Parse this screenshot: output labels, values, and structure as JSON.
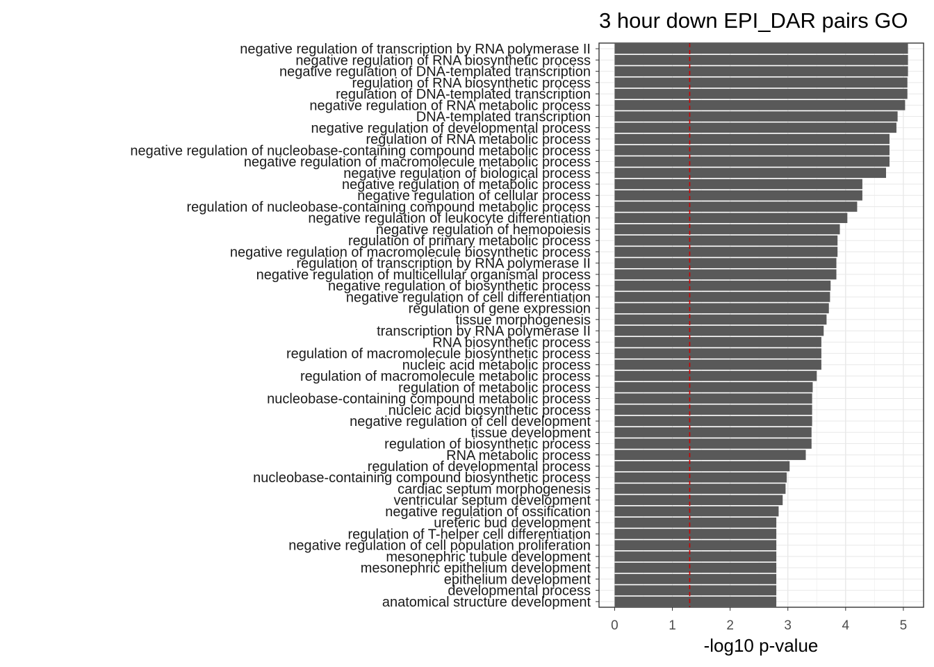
{
  "chart_data": {
    "type": "bar",
    "orientation": "horizontal",
    "title": "3 hour down EPI_DAR pairs GO",
    "xlabel": "-log10 p-value",
    "ylabel": "",
    "xlim": [
      -0.27,
      5.35
    ],
    "xticks": [
      0,
      1,
      2,
      3,
      4,
      5
    ],
    "threshold": 1.3,
    "bar_color": "#595959",
    "threshold_color": "#cc0000",
    "grid": true,
    "categories": [
      "negative regulation of transcription by RNA polymerase II",
      "negative regulation of RNA biosynthetic process",
      "negative regulation of DNA-templated transcription",
      "regulation of RNA biosynthetic process",
      "regulation of DNA-templated transcription",
      "negative regulation of RNA metabolic process",
      "DNA-templated transcription",
      "negative regulation of developmental process",
      "regulation of RNA metabolic process",
      "negative regulation of nucleobase-containing compound metabolic process",
      "negative regulation of macromolecule metabolic process",
      "negative regulation of biological process",
      "negative regulation of metabolic process",
      "negative regulation of cellular process",
      "regulation of nucleobase-containing compound metabolic process",
      "negative regulation of leukocyte differentiation",
      "negative regulation of hemopoiesis",
      "regulation of primary metabolic process",
      "negative regulation of macromolecule biosynthetic process",
      "regulation of transcription by RNA polymerase II",
      "negative regulation of multicellular organismal process",
      "negative regulation of biosynthetic process",
      "negative regulation of cell differentiation",
      "regulation of gene expression",
      "tissue morphogenesis",
      "transcription by RNA polymerase II",
      "RNA biosynthetic process",
      "regulation of macromolecule biosynthetic process",
      "nucleic acid metabolic process",
      "regulation of macromolecule metabolic process",
      "regulation of metabolic process",
      "nucleobase-containing compound metabolic process",
      "nucleic acid biosynthetic process",
      "negative regulation of cell development",
      "tissue development",
      "regulation of biosynthetic process",
      "RNA metabolic process",
      "regulation of developmental process",
      "nucleobase-containing compound biosynthetic process",
      "cardiac septum morphogenesis",
      "ventricular septum development",
      "negative regulation of ossification",
      "ureteric bud development",
      "regulation of T-helper cell differentiation",
      "negative regulation of cell population proliferation",
      "mesonephric tubule development",
      "mesonephric epithelium development",
      "epithelium development",
      "developmental process",
      "anatomical structure development"
    ],
    "values": [
      5.08,
      5.08,
      5.08,
      5.07,
      5.07,
      5.03,
      4.9,
      4.88,
      4.76,
      4.76,
      4.76,
      4.7,
      4.29,
      4.29,
      4.2,
      4.03,
      3.9,
      3.86,
      3.86,
      3.84,
      3.84,
      3.74,
      3.73,
      3.71,
      3.67,
      3.62,
      3.58,
      3.58,
      3.58,
      3.5,
      3.43,
      3.42,
      3.42,
      3.42,
      3.41,
      3.41,
      3.31,
      3.03,
      2.98,
      2.96,
      2.91,
      2.84,
      2.8,
      2.8,
      2.8,
      2.8,
      2.8,
      2.8,
      2.8,
      2.8
    ]
  }
}
